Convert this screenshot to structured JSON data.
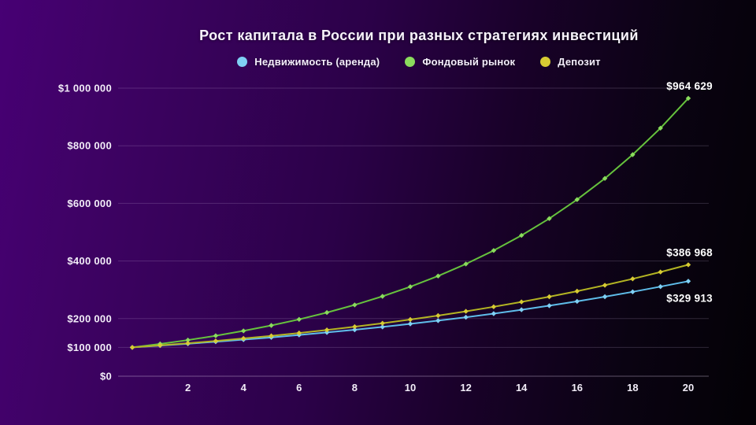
{
  "page": {
    "background_colors": [
      "#470074",
      "#2b0148",
      "#030105"
    ],
    "text_color": "#f3eefa"
  },
  "chart_data": {
    "type": "line",
    "title": "Рост капитала в России при разных стратегиях инвестиций",
    "xlabel": "",
    "ylabel": "",
    "xlim": [
      0,
      20
    ],
    "ylim": [
      0,
      1000000
    ],
    "grid": "horizontal-only",
    "legend_position": "top-center",
    "x": [
      0,
      1,
      2,
      3,
      4,
      5,
      6,
      7,
      8,
      9,
      10,
      11,
      12,
      13,
      14,
      15,
      16,
      17,
      18,
      19,
      20
    ],
    "x_ticks": [
      2,
      4,
      6,
      8,
      10,
      12,
      14,
      16,
      18,
      20
    ],
    "y_ticks": [
      {
        "value": 1000000,
        "label": "$1 000 000"
      },
      {
        "value": 800000,
        "label": "$800 000"
      },
      {
        "value": 600000,
        "label": "$600 000"
      },
      {
        "value": 400000,
        "label": "$400 000"
      },
      {
        "value": 200000,
        "label": "$200 000"
      },
      {
        "value": 100000,
        "label": "$100 000"
      },
      {
        "value": 0,
        "label": "$0"
      }
    ],
    "series": [
      {
        "id": "real-estate",
        "name": "Недвижимость (аренда)",
        "color": "#5fbdea",
        "marker_color": "#7fd0f4",
        "annual_rate_pct": 6.15,
        "end_label": "$329 913",
        "end_label_side": "below",
        "values": [
          100000,
          106150,
          112678,
          119608,
          126964,
          134772,
          143061,
          151860,
          161199,
          171113,
          181636,
          192807,
          204664,
          217251,
          230612,
          244795,
          259850,
          275831,
          292794,
          310801,
          329913
        ]
      },
      {
        "id": "stock-market",
        "name": "Фондовый рынок",
        "color": "#66c23d",
        "marker_color": "#8adc5d",
        "annual_rate_pct": 12,
        "end_label": "$964 629",
        "end_label_side": "above",
        "values": [
          100000,
          112000,
          125440,
          140493,
          157352,
          176234,
          197382,
          221068,
          247596,
          277308,
          310585,
          347855,
          389598,
          436349,
          488711,
          547357,
          613039,
          686604,
          768997,
          861276,
          964629
        ]
      },
      {
        "id": "deposit",
        "name": "Депозит",
        "color": "#b3b423",
        "marker_color": "#d7cb33",
        "annual_rate_pct": 7,
        "end_label": "$386 968",
        "end_label_side": "above",
        "values": [
          100000,
          107000,
          114490,
          122504,
          131080,
          140255,
          150073,
          160578,
          171819,
          183846,
          196715,
          210485,
          225219,
          240985,
          257853,
          275903,
          295216,
          315881,
          337993,
          361653,
          386968
        ]
      }
    ]
  }
}
